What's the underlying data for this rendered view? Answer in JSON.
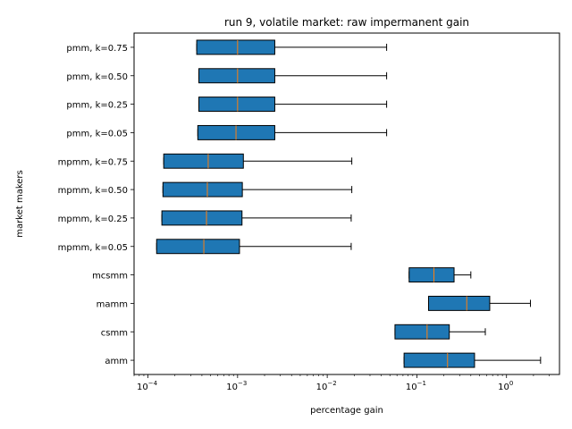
{
  "chart_data": {
    "type": "boxplot",
    "orientation": "horizontal",
    "title": "run 9, volatile market: raw impermanent gain",
    "xlabel": "percentage gain",
    "ylabel": "market makers",
    "xscale": "log",
    "xlim": [
      7e-05,
      3.9
    ],
    "grid": false,
    "box_color": "#1f77b4",
    "median_color": "#ff7f0e",
    "x_ticks": [
      {
        "value": 0.0001,
        "base": "10",
        "exp": "−4"
      },
      {
        "value": 0.001,
        "base": "10",
        "exp": "−3"
      },
      {
        "value": 0.01,
        "base": "10",
        "exp": "−2"
      },
      {
        "value": 0.1,
        "base": "10",
        "exp": "−1"
      },
      {
        "value": 1,
        "base": "10",
        "exp": "0"
      }
    ],
    "categories": [
      "amm",
      "csmm",
      "mamm",
      "mcsmm",
      "mpmm, k=0.05",
      "mpmm, k=0.25",
      "mpmm, k=0.50",
      "mpmm, k=0.75",
      "pmm, k=0.05",
      "pmm, k=0.25",
      "pmm, k=0.50",
      "pmm, k=0.75"
    ],
    "boxes": [
      {
        "q1": 0.072,
        "median": 0.22,
        "q3": 0.44,
        "whisker_low": 0.072,
        "whisker_high": 2.4
      },
      {
        "q1": 0.057,
        "median": 0.13,
        "q3": 0.23,
        "whisker_low": 0.057,
        "whisker_high": 0.58
      },
      {
        "q1": 0.135,
        "median": 0.36,
        "q3": 0.65,
        "whisker_low": 0.135,
        "whisker_high": 1.85
      },
      {
        "q1": 0.082,
        "median": 0.155,
        "q3": 0.26,
        "whisker_low": 0.082,
        "whisker_high": 0.4
      },
      {
        "q1": 0.000125,
        "median": 0.00042,
        "q3": 0.00105,
        "whisker_low": 0.000125,
        "whisker_high": 0.0185
      },
      {
        "q1": 0.000143,
        "median": 0.00045,
        "q3": 0.00112,
        "whisker_low": 0.000143,
        "whisker_high": 0.0185
      },
      {
        "q1": 0.000147,
        "median": 0.00046,
        "q3": 0.00113,
        "whisker_low": 0.000147,
        "whisker_high": 0.0188
      },
      {
        "q1": 0.00015,
        "median": 0.00047,
        "q3": 0.00116,
        "whisker_low": 0.00015,
        "whisker_high": 0.0188
      },
      {
        "q1": 0.00036,
        "median": 0.00096,
        "q3": 0.0026,
        "whisker_low": 0.00036,
        "whisker_high": 0.046
      },
      {
        "q1": 0.00037,
        "median": 0.001,
        "q3": 0.0026,
        "whisker_low": 0.00037,
        "whisker_high": 0.046
      },
      {
        "q1": 0.00037,
        "median": 0.001,
        "q3": 0.0026,
        "whisker_low": 0.00037,
        "whisker_high": 0.046
      },
      {
        "q1": 0.00035,
        "median": 0.001,
        "q3": 0.0026,
        "whisker_low": 0.00035,
        "whisker_high": 0.046
      }
    ]
  }
}
